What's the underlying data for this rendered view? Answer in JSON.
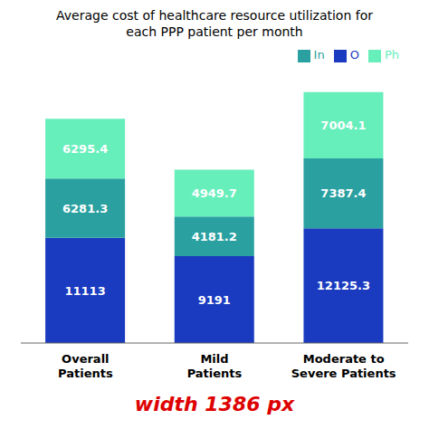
{
  "chart_data": {
    "type": "bar",
    "title": "Average cost of healthcare resource utilization for\neach PPP patient per month",
    "categories": [
      "Overall\nPatients",
      "Mild\nPatients",
      "Moderate to\nSevere Patients"
    ],
    "series": [
      {
        "name": "O",
        "color": "#1a3bbf",
        "values": [
          11113,
          9191,
          12125.3
        ]
      },
      {
        "name": "In",
        "color": "#2aa0a0",
        "values": [
          6281.3,
          4181.2,
          7387.4
        ]
      },
      {
        "name": "Ph",
        "color": "#66eebb",
        "values": [
          6295.4,
          4949.7,
          7004.1
        ]
      }
    ],
    "stacked": true,
    "data_labels": true,
    "ylim": [
      0,
      29698.816
    ],
    "tick_labels": "x",
    "legend": "upper right",
    "grid": false,
    "annotations": [
      {
        "text": "width 1386 px",
        "color": "#dd0000"
      }
    ]
  }
}
